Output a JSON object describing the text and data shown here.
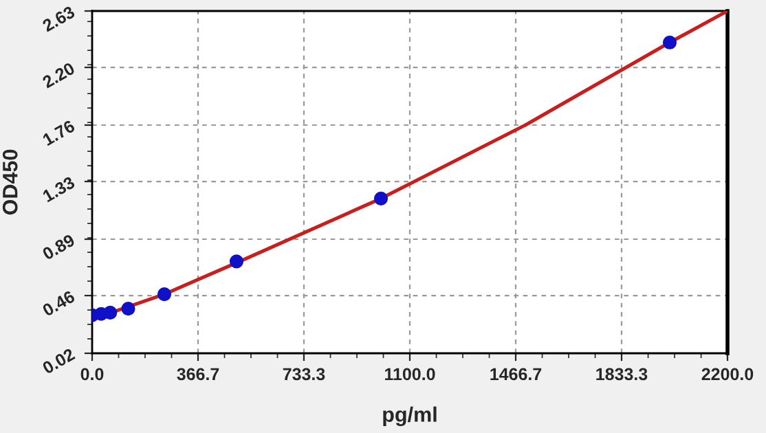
{
  "chart_data": {
    "type": "scatter",
    "xlabel": "pg/ml",
    "ylabel": "OD450",
    "series": [
      {
        "color": "#1010c8",
        "x": [
          0,
          31.25,
          62.5,
          125,
          250,
          500,
          1000,
          2000
        ],
        "values": [
          0.31,
          0.32,
          0.33,
          0.36,
          0.47,
          0.72,
          1.2,
          2.39
        ],
        "marker": "circle"
      },
      {
        "type": "line",
        "color": "#c81e1e",
        "x": [
          0,
          250,
          500,
          1000,
          1500,
          2000,
          2200
        ],
        "values": [
          0.28,
          0.47,
          0.71,
          1.2,
          1.76,
          2.39,
          2.63
        ],
        "marker": "none"
      }
    ],
    "xlim": [
      0,
      2200
    ],
    "xticks": [
      {
        "value": 0,
        "label": "0.0"
      },
      366.7,
      733.3,
      {
        "value": 1100,
        "label": "1100.0"
      },
      1466.7,
      1833.3,
      {
        "value": 2200,
        "label": "2200.0"
      }
    ],
    "ylim": [
      0.02,
      2.63
    ],
    "yticks": [
      0.02,
      0.46,
      0.89,
      1.33,
      1.76,
      {
        "value": 2.2,
        "label": "2.20"
      },
      2.63
    ],
    "grid": true,
    "legend": false
  }
}
